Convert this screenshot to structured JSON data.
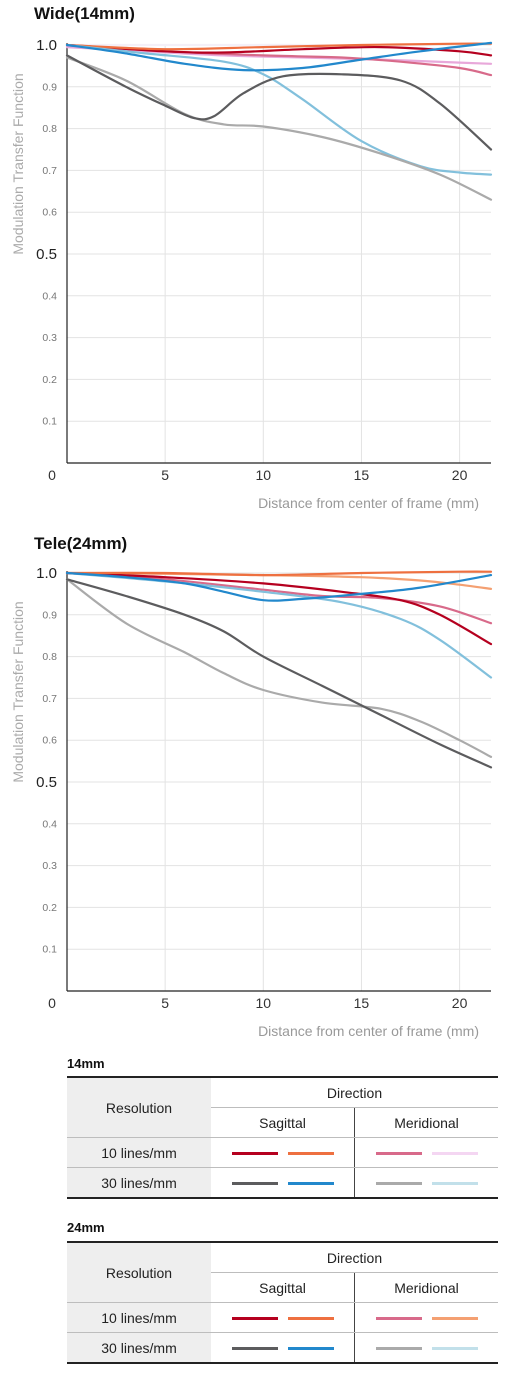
{
  "chart_data": [
    {
      "type": "line",
      "title": "Wide(14mm)",
      "xlabel": "Distance from center of frame (mm)",
      "ylabel": "Modulation Transfer Function",
      "xlim": [
        0,
        21.6
      ],
      "ylim": [
        0,
        1.0
      ],
      "x_ticks": [
        "0",
        "5",
        "10",
        "15",
        "20"
      ],
      "y_ticks": [
        "1.0",
        "0.9",
        "0.8",
        "0.7",
        "0.6",
        "0.5",
        "0.4",
        "0.3",
        "0.2",
        "0.1"
      ],
      "grid": true,
      "series": [
        {
          "color": "#f4f0f8",
          "x": [
            0,
            4,
            8,
            12,
            16,
            20,
            21.6
          ],
          "y": [
            1.0,
            1.0,
            1.0,
            1.0,
            0.995,
            0.99,
            0.99
          ]
        },
        {
          "color": "#e8a8da",
          "x": [
            0,
            4,
            8,
            12,
            16,
            20,
            21.6
          ],
          "y": [
            0.995,
            0.985,
            0.975,
            0.97,
            0.965,
            0.958,
            0.955
          ]
        },
        {
          "color": "#d86a8a",
          "x": [
            0,
            5,
            10,
            14,
            17,
            20,
            21.6
          ],
          "y": [
            1.0,
            0.985,
            0.975,
            0.97,
            0.96,
            0.945,
            0.928
          ]
        },
        {
          "color": "#b5001f",
          "x": [
            0,
            5,
            8,
            12,
            16,
            20,
            21.6
          ],
          "y": [
            1.0,
            0.985,
            0.982,
            0.99,
            0.995,
            0.985,
            0.975
          ]
        },
        {
          "color": "#ee7040",
          "x": [
            0,
            5,
            10,
            15,
            20,
            21.6
          ],
          "y": [
            1.0,
            0.99,
            0.995,
            1.0,
            1.003,
            1.003
          ]
        },
        {
          "color": "#82c0dc",
          "x": [
            0,
            4,
            8,
            10,
            12,
            15,
            18,
            20,
            21.6
          ],
          "y": [
            1.0,
            0.98,
            0.96,
            0.93,
            0.87,
            0.77,
            0.71,
            0.695,
            0.69
          ]
        },
        {
          "color": "#2288cc",
          "x": [
            0,
            3,
            6,
            9,
            12,
            15,
            18,
            21.6
          ],
          "y": [
            1.0,
            0.98,
            0.955,
            0.94,
            0.945,
            0.965,
            0.985,
            1.005
          ]
        },
        {
          "color": "#aaaaaa",
          "x": [
            0,
            3,
            6,
            8,
            10,
            13,
            16,
            19,
            21.6
          ],
          "y": [
            0.97,
            0.915,
            0.835,
            0.81,
            0.805,
            0.78,
            0.74,
            0.69,
            0.63
          ]
        },
        {
          "color": "#5c5c5e",
          "x": [
            0,
            3,
            5,
            6.5,
            7.5,
            9,
            11,
            14,
            17,
            19,
            21.6
          ],
          "y": [
            0.975,
            0.9,
            0.855,
            0.825,
            0.83,
            0.885,
            0.925,
            0.93,
            0.915,
            0.86,
            0.75
          ]
        }
      ]
    },
    {
      "type": "line",
      "title": "Tele(24mm)",
      "xlabel": "Distance from center of frame (mm)",
      "ylabel": "Modulation Transfer Function",
      "xlim": [
        0,
        21.6
      ],
      "ylim": [
        0,
        1.0
      ],
      "x_ticks": [
        "0",
        "5",
        "10",
        "15",
        "20"
      ],
      "y_ticks": [
        "1.0",
        "0.9",
        "0.8",
        "0.7",
        "0.6",
        "0.5",
        "0.4",
        "0.3",
        "0.2",
        "0.1"
      ],
      "grid": true,
      "series": [
        {
          "color": "#f4a072",
          "x": [
            0,
            5,
            10,
            15,
            18,
            20,
            21.6
          ],
          "y": [
            1.0,
            0.998,
            0.995,
            0.99,
            0.982,
            0.972,
            0.962
          ]
        },
        {
          "color": "#d86a8a",
          "x": [
            0,
            5,
            10,
            13,
            16,
            19,
            21.6
          ],
          "y": [
            1.0,
            0.985,
            0.96,
            0.945,
            0.94,
            0.92,
            0.88
          ]
        },
        {
          "color": "#82c0dc",
          "x": [
            0,
            5,
            10,
            14,
            17,
            19,
            21.6
          ],
          "y": [
            1.0,
            0.98,
            0.955,
            0.93,
            0.89,
            0.84,
            0.75
          ]
        },
        {
          "color": "#b5001f",
          "x": [
            0,
            5,
            10,
            14,
            17,
            19,
            21.6
          ],
          "y": [
            1.0,
            0.99,
            0.975,
            0.955,
            0.935,
            0.9,
            0.83
          ]
        },
        {
          "color": "#ee7040",
          "x": [
            0,
            5,
            10,
            15,
            20,
            21.6
          ],
          "y": [
            1.0,
            1.0,
            0.995,
            1.0,
            1.003,
            1.003
          ]
        },
        {
          "color": "#2288cc",
          "x": [
            0,
            3,
            6,
            8,
            10,
            12,
            15,
            18,
            21.6
          ],
          "y": [
            1.0,
            0.99,
            0.975,
            0.955,
            0.935,
            0.938,
            0.95,
            0.965,
            0.995
          ]
        },
        {
          "color": "#aaaaaa",
          "x": [
            0,
            3,
            6,
            8,
            10,
            13,
            16,
            18,
            20,
            21.6
          ],
          "y": [
            0.985,
            0.88,
            0.81,
            0.76,
            0.72,
            0.69,
            0.675,
            0.645,
            0.6,
            0.56
          ]
        },
        {
          "color": "#5c5c5e",
          "x": [
            0,
            3,
            6,
            8,
            10,
            13,
            16,
            19,
            21.6
          ],
          "y": [
            0.985,
            0.945,
            0.9,
            0.86,
            0.8,
            0.73,
            0.66,
            0.59,
            0.535
          ]
        }
      ]
    }
  ],
  "legends": [
    {
      "title": "14mm",
      "resolution_header": "Resolution",
      "direction_header": "Direction",
      "sagittal": "Sagittal",
      "meridional": "Meridional",
      "rows": [
        {
          "label": "10 lines/mm",
          "sagittal": [
            "#b5001f",
            "#ee7040"
          ],
          "meridional": [
            "#d86a8a",
            "#f4d6f2"
          ]
        },
        {
          "label": "30 lines/mm",
          "sagittal": [
            "#5c5c5e",
            "#2288cc"
          ],
          "meridional": [
            "#aaaaaa",
            "#c2e0ea"
          ]
        }
      ]
    },
    {
      "title": "24mm",
      "resolution_header": "Resolution",
      "direction_header": "Direction",
      "sagittal": "Sagittal",
      "meridional": "Meridional",
      "rows": [
        {
          "label": "10 lines/mm",
          "sagittal": [
            "#b5001f",
            "#ee7040"
          ],
          "meridional": [
            "#d86a8a",
            "#f4a072"
          ]
        },
        {
          "label": "30 lines/mm",
          "sagittal": [
            "#5c5c5e",
            "#2288cc"
          ],
          "meridional": [
            "#aaaaaa",
            "#c2e0ea"
          ]
        }
      ]
    }
  ]
}
